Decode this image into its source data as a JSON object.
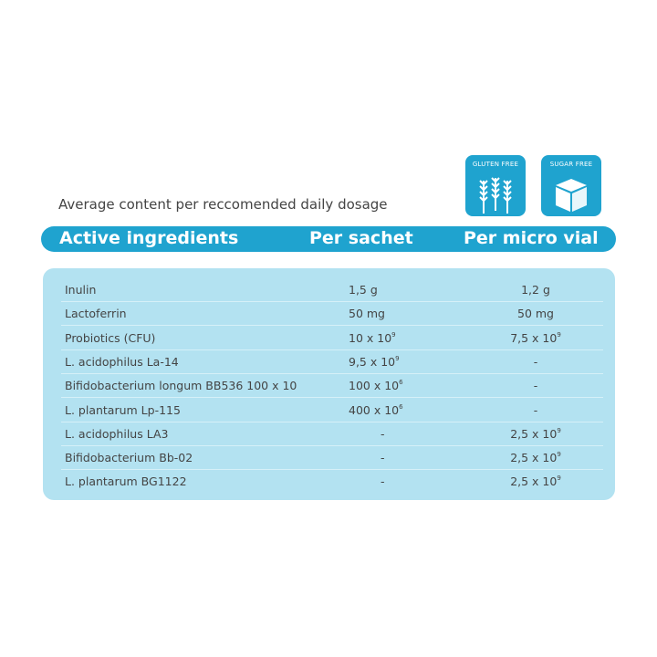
{
  "badges": [
    {
      "label": "GLUTEN FREE",
      "icon": "wheat-icon"
    },
    {
      "label": "SUGAR FREE",
      "icon": "sugar-cube-icon"
    }
  ],
  "caption": "Average content per reccomended daily dosage",
  "header": {
    "col1": "Active ingredients",
    "col2": "Per sachet",
    "col3": "Per micro vial"
  },
  "colors": {
    "accent": "#1fa3cf",
    "table_bg": "#b3e2f1"
  },
  "rows": [
    {
      "name": "Inulin",
      "sachet": {
        "base": "1,5 g"
      },
      "vial": {
        "base": "1,2 g"
      }
    },
    {
      "name": "Lactoferrin",
      "sachet": {
        "base": "50 mg"
      },
      "vial": {
        "base": "50 mg"
      }
    },
    {
      "name": "Probiotics (CFU)",
      "sachet": {
        "base": "10 x 10",
        "exp": "9"
      },
      "vial": {
        "base": "7,5 x 10",
        "exp": "9"
      }
    },
    {
      "name": "L. acidophilus La-14",
      "sachet": {
        "base": "9,5 x 10",
        "exp": "9"
      },
      "vial": {
        "base": "-"
      }
    },
    {
      "name": "Bifidobacterium longum BB536 100 x 10",
      "sachet": {
        "base": "100 x 10",
        "exp": "6"
      },
      "vial": {
        "base": "-"
      }
    },
    {
      "name": "L. plantarum Lp-115",
      "sachet": {
        "base": "400 x 10",
        "exp": "6"
      },
      "vial": {
        "base": "-"
      }
    },
    {
      "name": "L. acidophilus LA3",
      "sachet": {
        "base": "-"
      },
      "vial": {
        "base": "2,5 x 10",
        "exp": "9"
      }
    },
    {
      "name": "Bifidobacterium Bb-02",
      "sachet": {
        "base": "-"
      },
      "vial": {
        "base": "2,5 x 10",
        "exp": "9"
      }
    },
    {
      "name": "L. plantarum BG1122",
      "sachet": {
        "base": "-"
      },
      "vial": {
        "base": "2,5 x 10",
        "exp": "9"
      }
    }
  ]
}
